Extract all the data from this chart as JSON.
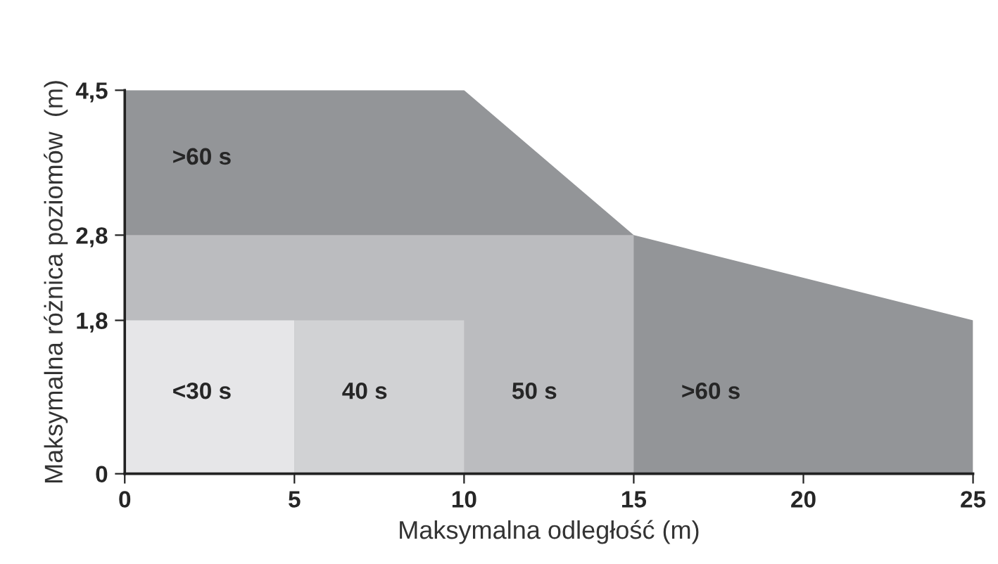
{
  "chart_data": {
    "type": "area",
    "xlabel": "Maksymalna odległość (m)",
    "ylabel": "Maksymalna różnica poziomów  (m)",
    "xlim": [
      0,
      25
    ],
    "ylim": [
      0,
      4.5
    ],
    "xticks": [
      0,
      5,
      10,
      15,
      20,
      25
    ],
    "yticks": [
      0,
      {
        "value": 1.8,
        "label": "1,8"
      },
      {
        "value": 2.8,
        "label": "2,8"
      },
      {
        "value": 4.5,
        "label": "4,5"
      }
    ],
    "grid": false,
    "series": [
      {
        "name": ">60 s",
        "color": "#939598",
        "x": [
          0,
          10,
          15,
          25
        ],
        "values": [
          4.5,
          4.5,
          2.8,
          1.8
        ]
      },
      {
        "name": "50 s",
        "color": "#bbbcbf",
        "x": [
          0,
          15
        ],
        "values": [
          2.8,
          2.8
        ]
      },
      {
        "name": "<30 s",
        "color": "#e6e6e8",
        "x": [
          0,
          5
        ],
        "values": [
          1.8,
          1.8
        ]
      },
      {
        "name": "40 s",
        "color": "#d1d2d4",
        "x": [
          5,
          10
        ],
        "values": [
          1.8,
          1.8
        ]
      }
    ]
  }
}
